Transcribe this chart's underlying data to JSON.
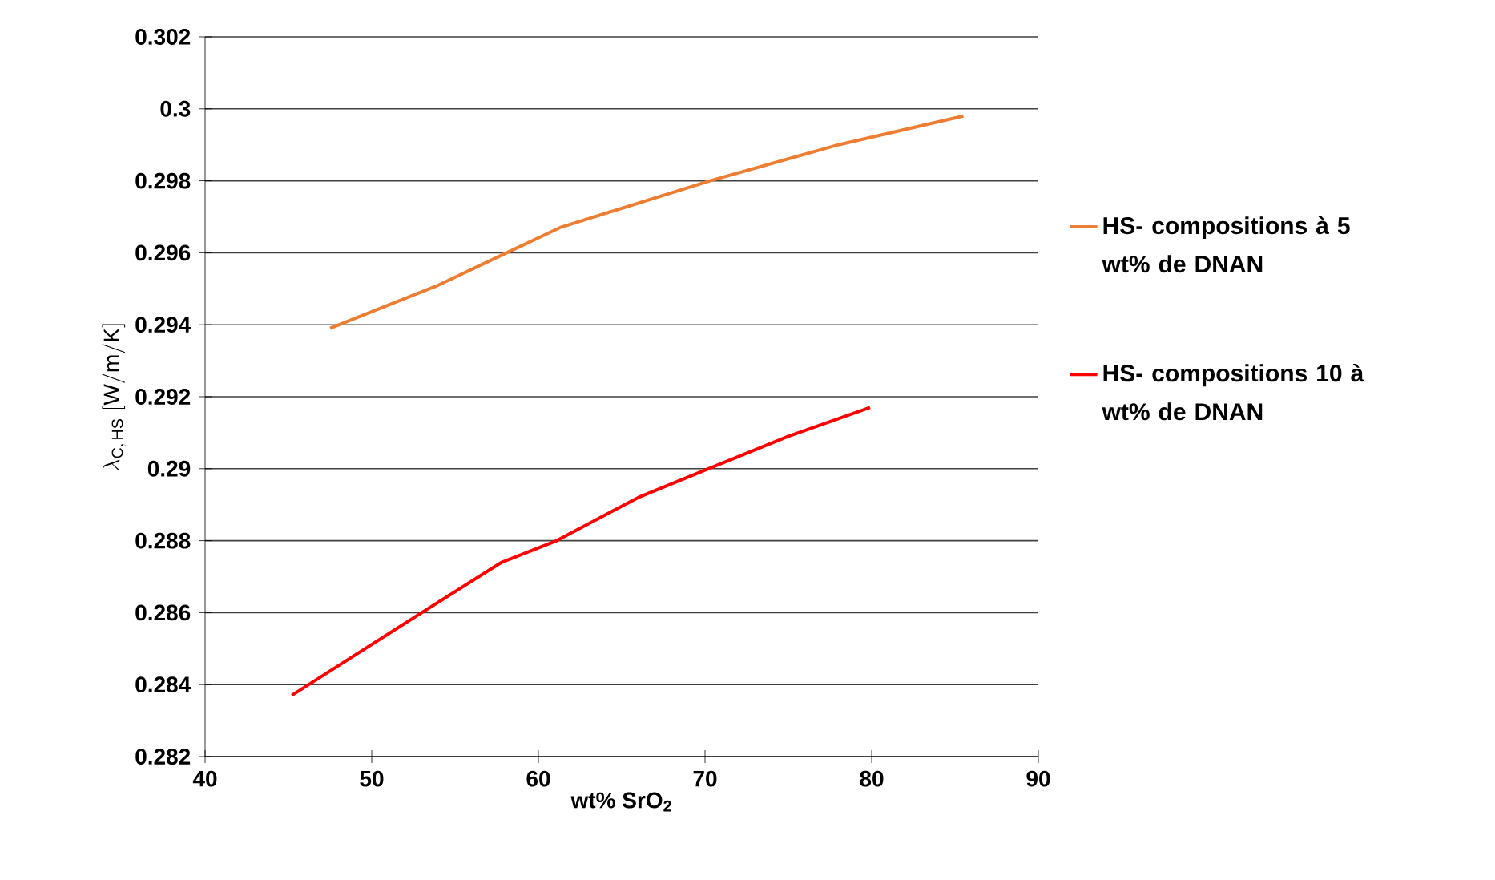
{
  "chart_data": {
    "type": "line",
    "xlabel": "wt% SrO$_{2}$",
    "ylabel": "\\lambda_{\\mathrm{C,\\,HS}}\\ \\mathrm{[W/m/K]}",
    "xlim": [
      40,
      90
    ],
    "xticks": [
      40,
      50,
      60,
      70,
      80,
      90
    ],
    "ylim": [
      0.282,
      0.302
    ],
    "yticks": [
      0.282,
      0.284,
      0.286,
      0.288,
      0.29,
      0.292,
      0.294,
      0.296,
      0.298,
      0.3,
      0.302
    ],
    "grid": "y",
    "legend": "right",
    "marker": "none",
    "line_style": "solid",
    "series": [
      {
        "name": "HS- compositions à 5 wt% de DNAN",
        "color": "#ed7d31",
        "x": [
          47.5,
          54,
          58.1,
          61.3,
          70.3,
          78,
          85.5
        ],
        "values": [
          0.2939,
          0.2951,
          0.296,
          0.2967,
          0.298,
          0.299,
          0.2998
        ]
      },
      {
        "name": "HS- compositions 10 à wt% de DNAN",
        "color": "#ff0000",
        "x": [
          45.2,
          53,
          57.8,
          61.1,
          66,
          70.2,
          75,
          79.9
        ],
        "values": [
          0.2837,
          0.286,
          0.2874,
          0.288,
          0.2892,
          0.29,
          0.2909,
          0.2917
        ]
      }
    ]
  }
}
